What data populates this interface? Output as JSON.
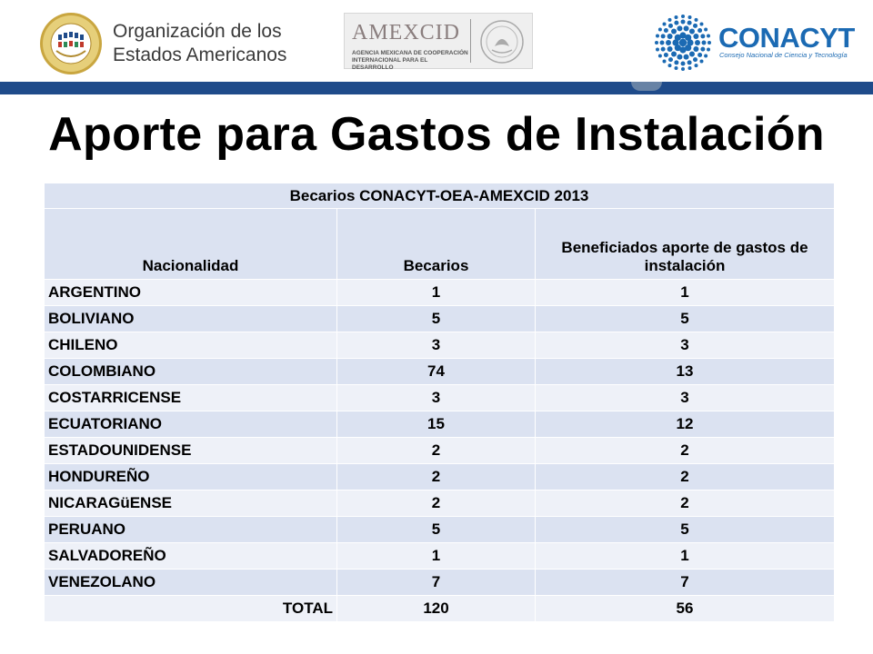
{
  "header": {
    "oea_name_line1": "Organización de los",
    "oea_name_line2": "Estados Americanos",
    "amexcid_name": "AMEXCID",
    "amexcid_subtitle": "AGENCIA MEXICANA DE COOPERACIÓN INTERNACIONAL PARA EL DESARROLLO",
    "conacyt_name": "CONACYT",
    "conacyt_subtitle": "Consejo Nacional de Ciencia y Tecnología"
  },
  "title": "Aporte para Gastos de Instalación",
  "table": {
    "caption": "Becarios CONACYT-OEA-AMEXCID 2013",
    "headers": [
      "Nacionalidad",
      "Becarios",
      "Beneficiados aporte de gastos de instalación"
    ],
    "rows": [
      {
        "nacionalidad": "ARGENTINO",
        "becarios": "1",
        "beneficiados": "1"
      },
      {
        "nacionalidad": "BOLIVIANO",
        "becarios": "5",
        "beneficiados": "5"
      },
      {
        "nacionalidad": "CHILENO",
        "becarios": "3",
        "beneficiados": "3"
      },
      {
        "nacionalidad": "COLOMBIANO",
        "becarios": "74",
        "beneficiados": "13"
      },
      {
        "nacionalidad": "COSTARRICENSE",
        "becarios": "3",
        "beneficiados": "3"
      },
      {
        "nacionalidad": "ECUATORIANO",
        "becarios": "15",
        "beneficiados": "12"
      },
      {
        "nacionalidad": "ESTADOUNIDENSE",
        "becarios": "2",
        "beneficiados": "2"
      },
      {
        "nacionalidad": "HONDUREÑO",
        "becarios": "2",
        "beneficiados": "2"
      },
      {
        "nacionalidad": "NICARAGüENSE",
        "becarios": "2",
        "beneficiados": "2"
      },
      {
        "nacionalidad": "PERUANO",
        "becarios": "5",
        "beneficiados": "5"
      },
      {
        "nacionalidad": "SALVADOREÑO",
        "becarios": "1",
        "beneficiados": "1"
      },
      {
        "nacionalidad": "VENEZOLANO",
        "becarios": "7",
        "beneficiados": "7"
      }
    ],
    "total": {
      "label": "TOTAL",
      "becarios": "120",
      "beneficiados": "56"
    }
  },
  "colors": {
    "accent_bar": "#1f4b8a",
    "row_dark": "#dbe2f1",
    "row_light": "#eef1f8",
    "conacyt_blue": "#1b6ab3"
  }
}
